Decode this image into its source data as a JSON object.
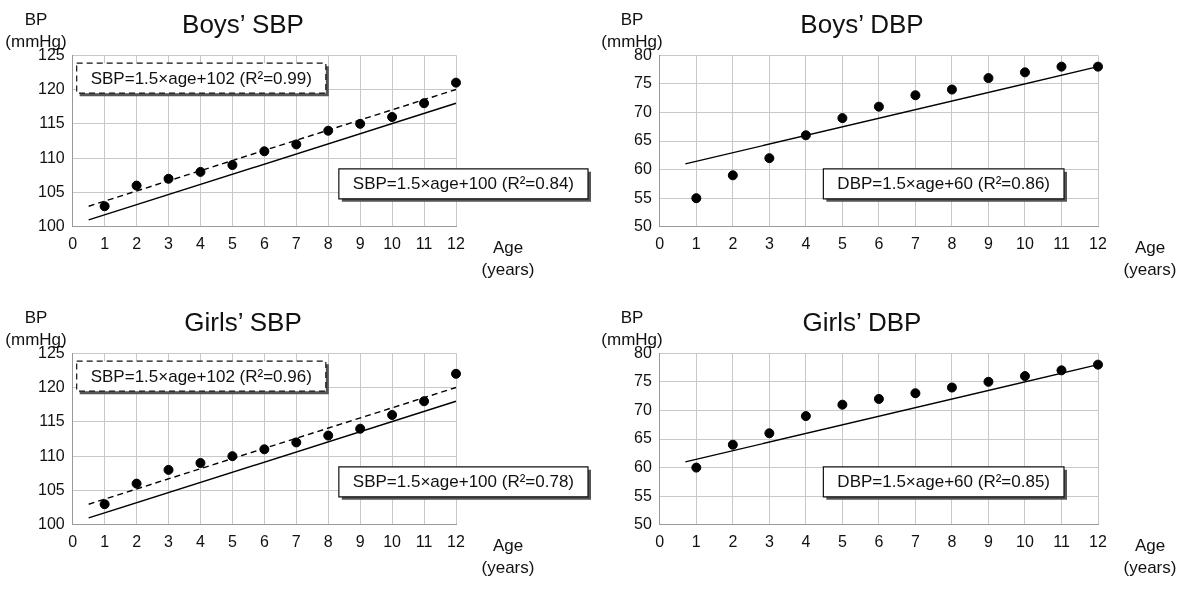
{
  "chart_data": [
    {
      "type": "scatter",
      "title": "Boys’ SBP",
      "ylabel": "BP (mmHg)",
      "xlabel": "Age (years)",
      "xlim": [
        0,
        12
      ],
      "xticks": [
        0,
        1,
        2,
        3,
        4,
        5,
        6,
        7,
        8,
        9,
        10,
        11,
        12
      ],
      "ylim": [
        100,
        125
      ],
      "yticks": [
        100,
        105,
        110,
        115,
        120,
        125
      ],
      "grid": true,
      "x": [
        1,
        2,
        3,
        4,
        5,
        6,
        7,
        8,
        9,
        10,
        11,
        12
      ],
      "series": [
        {
          "color": "#000000",
          "marker": "circle",
          "values": [
            103,
            106,
            107,
            108,
            109,
            111,
            112,
            114,
            115,
            116,
            118,
            121
          ]
        },
        {
          "type": "line",
          "color": "#000000",
          "marker": "none",
          "line_style": "dashed",
          "x": [
            0.5,
            12
          ],
          "values": [
            103,
            120
          ]
        },
        {
          "type": "line",
          "color": "#000000",
          "marker": "none",
          "line_style": "solid",
          "x": [
            0.5,
            12
          ],
          "values": [
            101,
            118
          ]
        }
      ],
      "annotations": [
        "SBP=1.5×age+102 (R²=0.99)",
        "SBP=1.5×age+100 (R²=0.84)"
      ]
    },
    {
      "type": "scatter",
      "title": "Boys’ DBP",
      "ylabel": "BP (mmHg)",
      "xlabel": "Age (years)",
      "xlim": [
        0,
        12
      ],
      "xticks": [
        0,
        1,
        2,
        3,
        4,
        5,
        6,
        7,
        8,
        9,
        10,
        11,
        12
      ],
      "ylim": [
        50,
        80
      ],
      "yticks": [
        50,
        55,
        60,
        65,
        70,
        75,
        80
      ],
      "grid": true,
      "x": [
        1,
        2,
        3,
        4,
        5,
        6,
        7,
        8,
        9,
        10,
        11,
        12
      ],
      "series": [
        {
          "color": "#000000",
          "marker": "circle",
          "values": [
            55,
            59,
            62,
            66,
            69,
            71,
            73,
            74,
            76,
            77,
            78,
            78
          ]
        },
        {
          "type": "line",
          "color": "#000000",
          "marker": "none",
          "line_style": "solid",
          "x": [
            0.7,
            12
          ],
          "values": [
            61,
            78
          ]
        }
      ],
      "annotations": [
        "DBP=1.5×age+60 (R²=0.86)"
      ]
    },
    {
      "type": "scatter",
      "title": "Girls’ SBP",
      "ylabel": "BP (mmHg)",
      "xlabel": "Age (years)",
      "xlim": [
        0,
        12
      ],
      "xticks": [
        0,
        1,
        2,
        3,
        4,
        5,
        6,
        7,
        8,
        9,
        10,
        11,
        12
      ],
      "ylim": [
        100,
        125
      ],
      "yticks": [
        100,
        105,
        110,
        115,
        120,
        125
      ],
      "grid": true,
      "x": [
        1,
        2,
        3,
        4,
        5,
        6,
        7,
        8,
        9,
        10,
        11,
        12
      ],
      "series": [
        {
          "color": "#000000",
          "marker": "circle",
          "values": [
            103,
            106,
            108,
            109,
            110,
            111,
            112,
            113,
            114,
            116,
            118,
            122
          ]
        },
        {
          "type": "line",
          "color": "#000000",
          "marker": "none",
          "line_style": "dashed",
          "x": [
            0.5,
            12
          ],
          "values": [
            103,
            120
          ]
        },
        {
          "type": "line",
          "color": "#000000",
          "marker": "none",
          "line_style": "solid",
          "x": [
            0.5,
            12
          ],
          "values": [
            101,
            118
          ]
        }
      ],
      "annotations": [
        "SBP=1.5×age+102 (R²=0.96)",
        "SBP=1.5×age+100 (R²=0.78)"
      ]
    },
    {
      "type": "scatter",
      "title": "Girls’ DBP",
      "ylabel": "BP (mmHg)",
      "xlabel": "Age (years)",
      "xlim": [
        0,
        12
      ],
      "xticks": [
        0,
        1,
        2,
        3,
        4,
        5,
        6,
        7,
        8,
        9,
        10,
        11,
        12
      ],
      "ylim": [
        50,
        80
      ],
      "yticks": [
        50,
        55,
        60,
        65,
        70,
        75,
        80
      ],
      "grid": true,
      "x": [
        1,
        2,
        3,
        4,
        5,
        6,
        7,
        8,
        9,
        10,
        11,
        12
      ],
      "series": [
        {
          "color": "#000000",
          "marker": "circle",
          "values": [
            60,
            64,
            66,
            69,
            71,
            72,
            73,
            74,
            75,
            76,
            77,
            78
          ]
        },
        {
          "type": "line",
          "color": "#000000",
          "marker": "none",
          "line_style": "solid",
          "x": [
            0.7,
            12
          ],
          "values": [
            61,
            78
          ]
        }
      ],
      "annotations": [
        "DBP=1.5×age+60 (R²=0.85)"
      ]
    }
  ]
}
